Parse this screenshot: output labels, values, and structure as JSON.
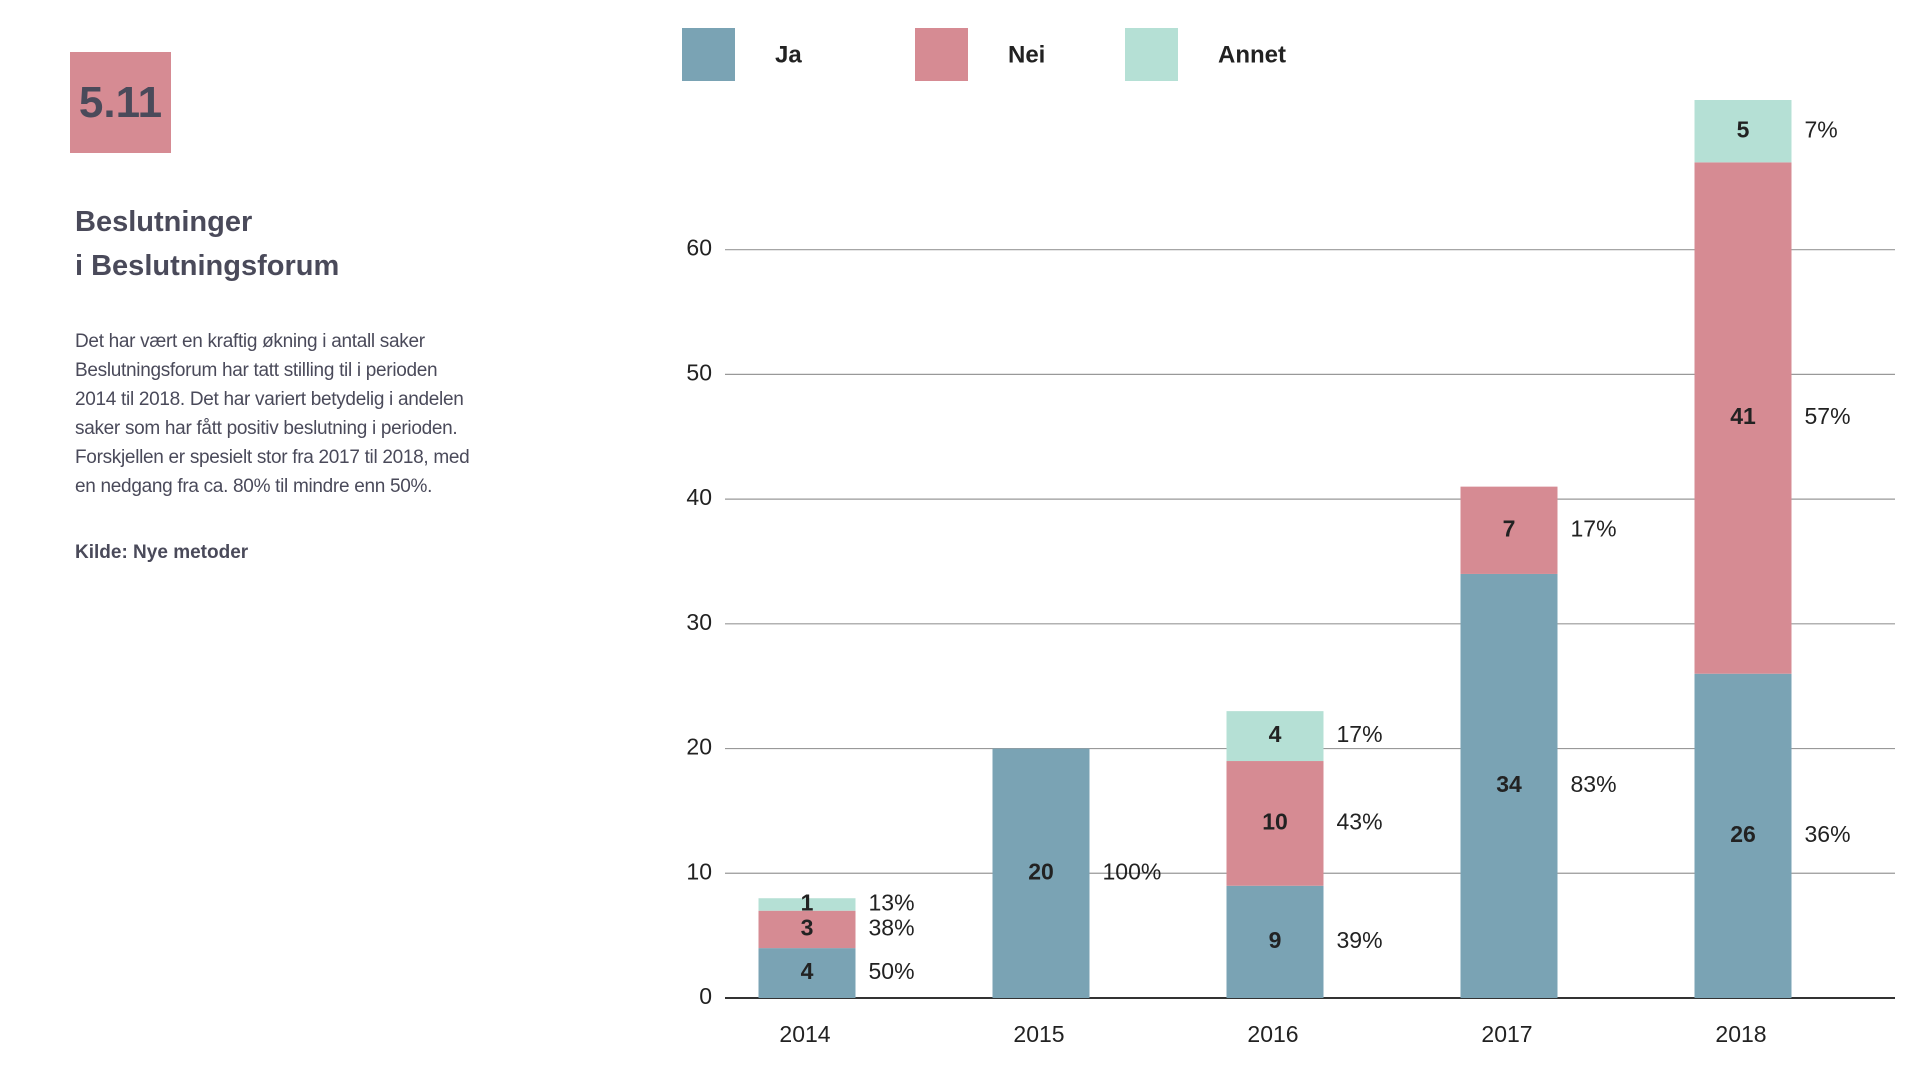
{
  "figure_number": "5.11",
  "title_lines": [
    "Beslutninger",
    "i Beslutningsforum"
  ],
  "body": "Det har vært en kraftig økning i antall saker Beslutningsforum har tatt stilling til i perioden 2014 til 2018. Det har variert betydelig i andelen saker som har fått positiv beslutning i perioden. Forskjellen er spesielt stor fra 2017 til 2018, med en nedgang fra ca. 80% til mindre enn 50%.",
  "source": "Kilde: Nye metoder",
  "chart_data": {
    "type": "stacked_bar",
    "categories": [
      "2014",
      "2015",
      "2016",
      "2017",
      "2018"
    ],
    "series": [
      {
        "name": "Ja",
        "color": "#7aa3b4",
        "values": [
          4,
          20,
          9,
          34,
          26
        ],
        "share_labels": [
          "50%",
          "100%",
          "39%",
          "83%",
          "36%"
        ]
      },
      {
        "name": "Nei",
        "color": "#d68b93",
        "values": [
          3,
          null,
          10,
          7,
          41
        ],
        "share_labels": [
          "38%",
          null,
          "43%",
          "17%",
          "57%"
        ]
      },
      {
        "name": "Annet",
        "color": "#b5e0d5",
        "values": [
          1,
          null,
          4,
          null,
          5
        ],
        "share_labels": [
          "13%",
          null,
          "17%",
          null,
          "7%"
        ]
      }
    ],
    "ylim": [
      0,
      72
    ],
    "yticks": [
      0,
      10,
      20,
      30,
      40,
      50,
      60
    ],
    "grid": true,
    "legend": "top"
  }
}
